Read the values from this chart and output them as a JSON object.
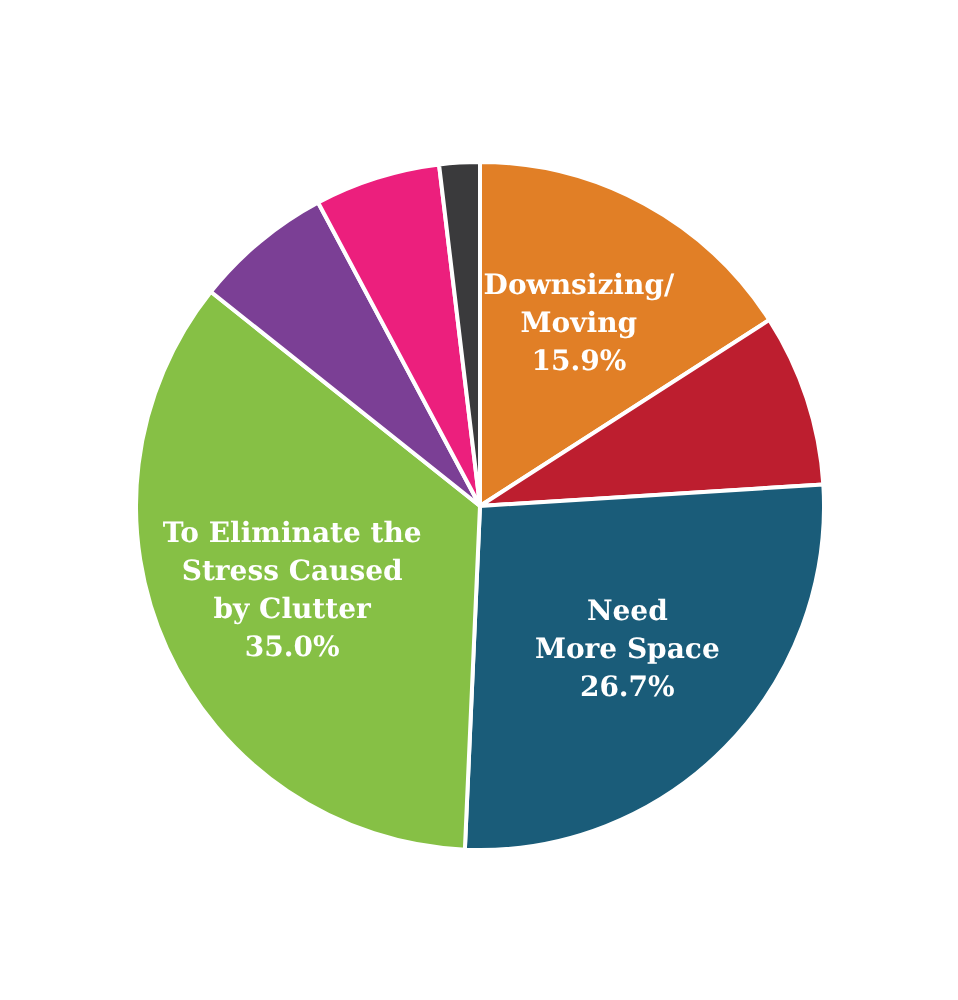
{
  "chart_data": {
    "type": "pie",
    "categories": [
      "Downsizing/\nMoving",
      null,
      "Need\nMore Space",
      "To Eliminate the\nStress Caused\nby Clutter",
      null,
      null,
      null
    ],
    "values": [
      15.9,
      8.1,
      26.7,
      35.0,
      6.5,
      5.9,
      1.9
    ],
    "value_labels": [
      "15.9%",
      null,
      "26.7%",
      "35.0%",
      null,
      null,
      null
    ],
    "colors": [
      "#e17f26",
      "#bd1e2f",
      "#1a5c79",
      "#86c045",
      "#7b3f95",
      "#ec1f7d",
      "#3a3a3c"
    ]
  }
}
